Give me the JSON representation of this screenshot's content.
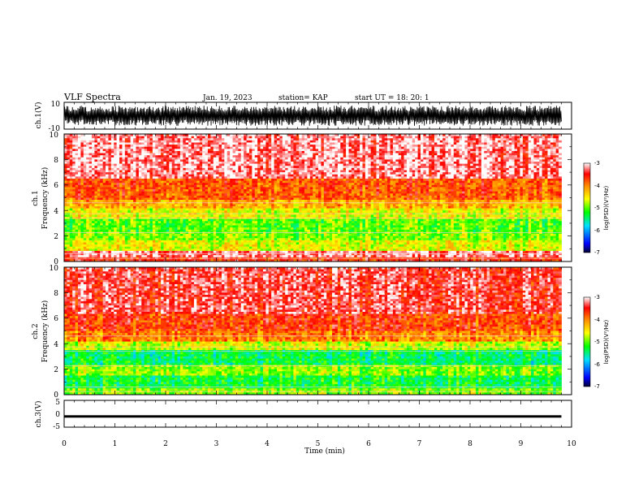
{
  "header": {
    "title": "VLF Spectra",
    "date": "Jan. 19, 2023",
    "station": "station= KAP",
    "start": "start  UT  =   18: 20: 1"
  },
  "chart_data": [
    {
      "type": "line",
      "name": "ch1-waveform",
      "ylabel": "ch.1(V)",
      "ylim": [
        -10,
        10
      ],
      "yticks": [
        "10",
        "-10"
      ],
      "x_range_min": [
        0,
        9.8
      ],
      "description_values": "dense oscillation between about -7 and 7 V"
    },
    {
      "type": "heatmap",
      "name": "ch1-spectrogram",
      "ylabel_top": "ch.1",
      "ylabel": "Frequency (kHz)",
      "ylim": [
        0,
        10
      ],
      "yticks": [
        "0",
        "2",
        "4",
        "6",
        "8",
        "10"
      ],
      "bands": [
        {
          "from": 0,
          "to": 0.4,
          "level": -3.6
        },
        {
          "from": 0.4,
          "to": 0.8,
          "level": -3.2
        },
        {
          "from": 0.8,
          "to": 1.7,
          "level": -4.6
        },
        {
          "from": 1.7,
          "to": 2.4,
          "level": -4.9
        },
        {
          "from": 2.4,
          "to": 3.4,
          "level": -5.0
        },
        {
          "from": 3.4,
          "to": 4.2,
          "level": -4.6
        },
        {
          "from": 4.2,
          "to": 4.9,
          "level": -4.2
        },
        {
          "from": 4.9,
          "to": 6.5,
          "level": -3.8
        },
        {
          "from": 6.5,
          "to": 10,
          "level": -3.2
        }
      ],
      "colorbar": {
        "label": "log(PSD)(V²/Hz)",
        "range": [
          -7,
          -3
        ],
        "ticks": [
          "-3",
          "-4",
          "-5",
          "-6",
          "-7"
        ]
      }
    },
    {
      "type": "heatmap",
      "name": "ch2-spectrogram",
      "ylabel_top": "ch.2",
      "ylabel": "Frequency (kHz)",
      "ylim": [
        0,
        10
      ],
      "yticks": [
        "0",
        "2",
        "4",
        "6",
        "8",
        "10"
      ],
      "bands": [
        {
          "from": 0,
          "to": 0.5,
          "level": -4.9
        },
        {
          "from": 0.5,
          "to": 1.5,
          "level": -5.3
        },
        {
          "from": 1.5,
          "to": 2.3,
          "level": -4.9
        },
        {
          "from": 2.3,
          "to": 3.5,
          "level": -5.4
        },
        {
          "from": 3.5,
          "to": 4.2,
          "level": -4.7
        },
        {
          "from": 4.2,
          "to": 5.0,
          "level": -4.0
        },
        {
          "from": 5.0,
          "to": 6.3,
          "level": -3.7
        },
        {
          "from": 6.3,
          "to": 10,
          "level": -3.4
        }
      ],
      "colorbar": {
        "label": "log(PSD)(V²/Hz)",
        "range": [
          -7,
          -3
        ],
        "ticks": [
          "-3",
          "-4",
          "-5",
          "-6",
          "-7"
        ]
      }
    },
    {
      "type": "line",
      "name": "ch3-waveform",
      "ylabel": "ch.3(V)",
      "ylim": [
        -5,
        5
      ],
      "yticks": [
        "5",
        "0",
        "-5"
      ],
      "level": -1,
      "description_values": "narrow band near -1 V"
    }
  ],
  "xaxis": {
    "xlabel": "Time (min)",
    "xlim": [
      0,
      10
    ],
    "ticks": [
      "0",
      "1",
      "2",
      "3",
      "4",
      "5",
      "6",
      "7",
      "8",
      "9",
      "10"
    ]
  }
}
